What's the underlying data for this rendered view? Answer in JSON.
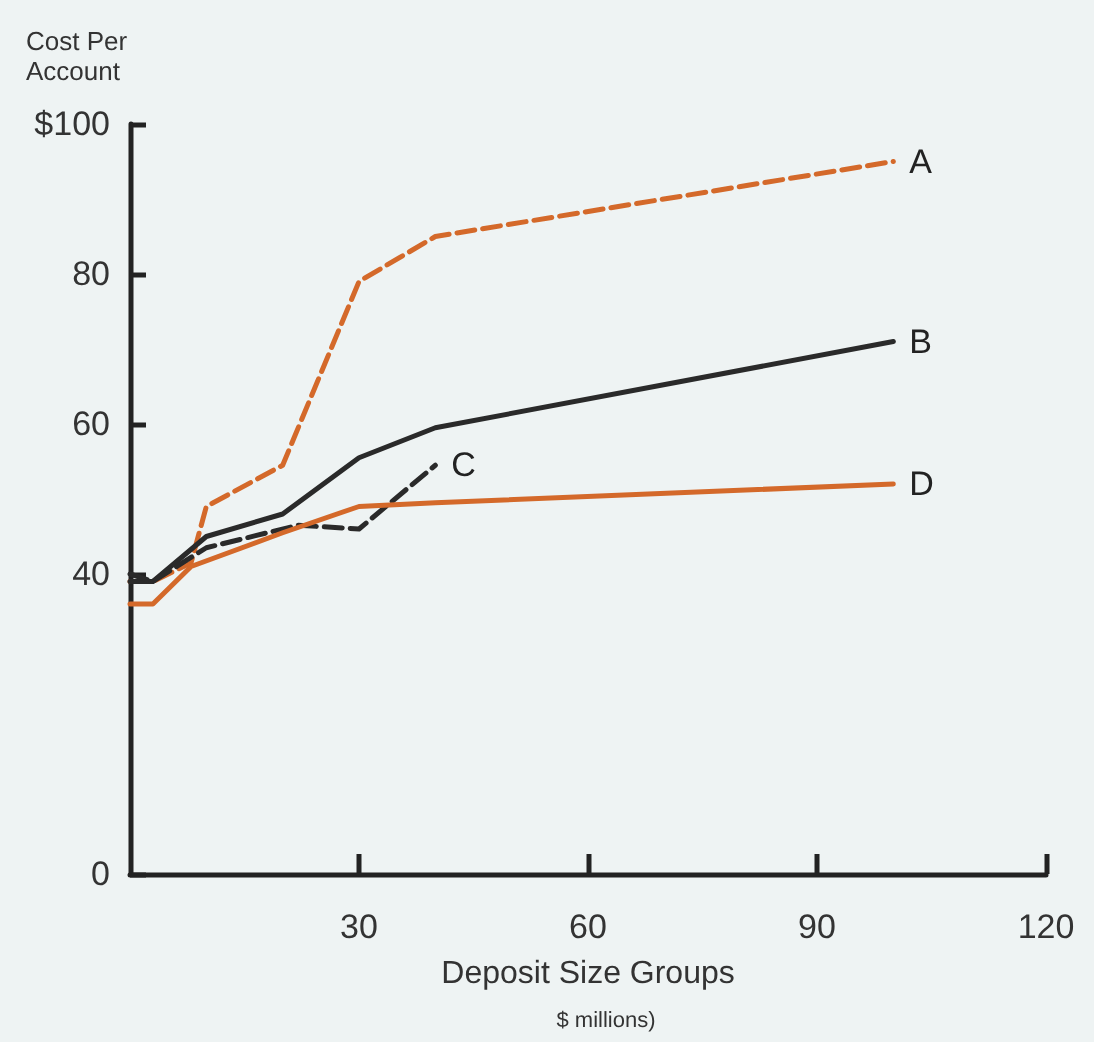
{
  "chart_data": {
    "type": "line",
    "ylabel": "Cost Per Account",
    "xlabel": "Deposit Size Groups",
    "annotations": [
      "$ millions)"
    ],
    "xlim": [
      0,
      120
    ],
    "xticks": [
      30,
      60,
      90,
      120
    ],
    "ylim": [
      0,
      100
    ],
    "yticks": [
      0,
      40,
      60,
      80,
      {
        "value": 100,
        "label": "$100"
      }
    ],
    "grid": false,
    "legend": false,
    "marker": "none",
    "series": [
      {
        "name": "A",
        "color": "#d4692a",
        "line_style": "dashed",
        "x": [
          0,
          3,
          8,
          10,
          20,
          30,
          40,
          100
        ],
        "values": [
          39,
          39,
          41.5,
          49,
          54.5,
          79,
          85,
          95
        ]
      },
      {
        "name": "B",
        "color": "#2a2a2a",
        "line_style": "solid",
        "x": [
          0,
          3,
          10,
          20,
          30,
          40,
          100
        ],
        "values": [
          39,
          39,
          45,
          48,
          55.5,
          59.5,
          71
        ]
      },
      {
        "name": "C",
        "color": "#2a2a2a",
        "line_style": "dashed",
        "x": [
          0,
          3,
          10,
          22,
          30,
          40
        ],
        "values": [
          40,
          39,
          43.5,
          46.5,
          46,
          54.5
        ]
      },
      {
        "name": "D",
        "color": "#d4692a",
        "line_style": "solid",
        "x": [
          0,
          3,
          8,
          20,
          30,
          40,
          100
        ],
        "values": [
          36,
          36,
          41,
          45.5,
          49,
          49.5,
          52
        ]
      }
    ]
  }
}
